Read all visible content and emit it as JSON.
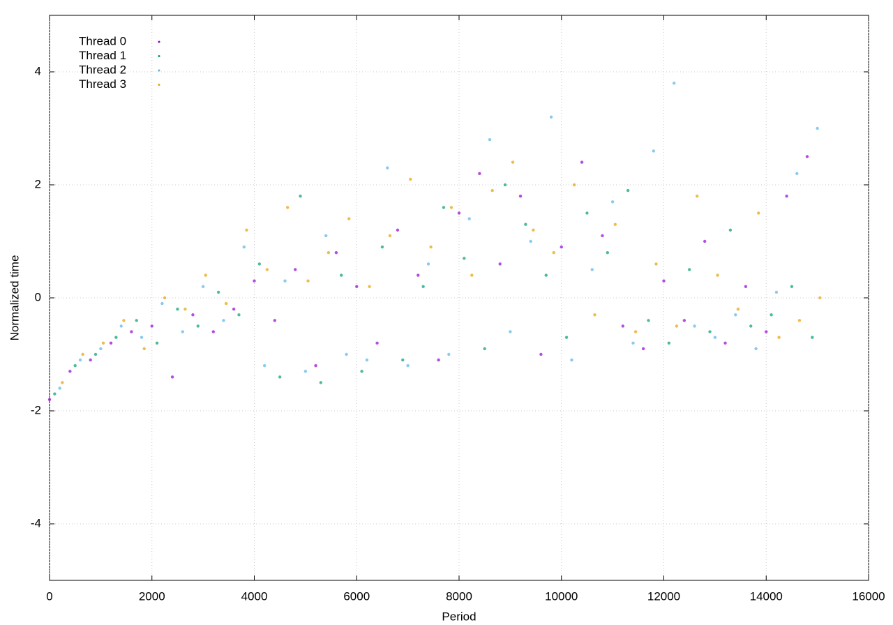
{
  "chart_data": {
    "type": "scatter",
    "xlabel": "Period",
    "ylabel": "Normalized time",
    "xlim": [
      0,
      16000
    ],
    "ylim": [
      -5,
      5
    ],
    "xticks": [
      0,
      2000,
      4000,
      6000,
      8000,
      10000,
      12000,
      14000,
      16000
    ],
    "yticks": [
      -4,
      -2,
      0,
      2,
      4
    ],
    "grid": true,
    "legend": "top-left",
    "series": [
      {
        "name": "Thread 0",
        "color": "#9400d3",
        "x": [
          0,
          400,
          800,
          1200,
          1600,
          2000,
          2400,
          2800,
          3200,
          3600,
          4000,
          4400,
          4800,
          5200,
          5600,
          6000,
          6400,
          6800,
          7200,
          7600,
          8000,
          8400,
          8800,
          9200,
          9600,
          10000,
          10400,
          10800,
          11200,
          11600,
          12000,
          12400,
          12800,
          13200,
          13600,
          14000,
          14400,
          14800
        ],
        "values": [
          -1.8,
          -1.3,
          -1.1,
          -0.8,
          -0.6,
          -0.5,
          -1.4,
          -0.3,
          -0.6,
          -0.2,
          0.3,
          -0.4,
          0.5,
          -1.2,
          0.8,
          0.2,
          -0.8,
          1.2,
          0.4,
          -1.1,
          1.5,
          2.2,
          0.6,
          1.8,
          -1.0,
          0.9,
          2.4,
          1.1,
          -0.5,
          -0.9,
          0.3,
          -0.4,
          1.0,
          -0.8,
          0.2,
          -0.6,
          1.8,
          2.5
        ]
      },
      {
        "name": "Thread 1",
        "color": "#009e73",
        "x": [
          100,
          500,
          900,
          1300,
          1700,
          2100,
          2500,
          2900,
          3300,
          3700,
          4100,
          4500,
          4900,
          5300,
          5700,
          6100,
          6500,
          6900,
          7300,
          7700,
          8100,
          8500,
          8900,
          9300,
          9700,
          10100,
          10500,
          10900,
          11300,
          11700,
          12100,
          12500,
          12900,
          13300,
          13700,
          14100,
          14500,
          14900
        ],
        "values": [
          -1.7,
          -1.2,
          -1.0,
          -0.7,
          -0.4,
          -0.8,
          -0.2,
          -0.5,
          0.1,
          -0.3,
          0.6,
          -1.4,
          1.8,
          -1.5,
          0.4,
          -1.3,
          0.9,
          -1.1,
          0.2,
          1.6,
          0.7,
          -0.9,
          2.0,
          1.3,
          0.4,
          -0.7,
          1.5,
          0.8,
          1.9,
          -0.4,
          -0.8,
          0.5,
          -0.6,
          1.2,
          -0.5,
          -0.3,
          0.2,
          -0.7
        ]
      },
      {
        "name": "Thread 2",
        "color": "#56b4e9",
        "x": [
          200,
          600,
          1000,
          1400,
          1800,
          2200,
          2600,
          3000,
          3400,
          3800,
          4200,
          4600,
          5000,
          5400,
          5800,
          6200,
          6600,
          7000,
          7400,
          7800,
          8200,
          8600,
          9000,
          9400,
          9800,
          10200,
          10600,
          11000,
          11400,
          11800,
          12200,
          12600,
          13000,
          13400,
          13800,
          14200,
          14600,
          15000
        ],
        "values": [
          -1.6,
          -1.1,
          -0.9,
          -0.5,
          -0.7,
          -0.1,
          -0.6,
          0.2,
          -0.4,
          0.9,
          -1.2,
          0.3,
          -1.3,
          1.1,
          -1.0,
          -1.1,
          2.3,
          -1.2,
          0.6,
          -1.0,
          1.4,
          2.8,
          -0.6,
          1.0,
          3.2,
          -1.1,
          0.5,
          1.7,
          -0.8,
          2.6,
          3.8,
          -0.5,
          -0.7,
          -0.3,
          -0.9,
          0.1,
          2.2,
          3.0
        ]
      },
      {
        "name": "Thread 3",
        "color": "#e69f00",
        "x": [
          250,
          650,
          1050,
          1450,
          1850,
          2250,
          2650,
          3050,
          3450,
          3850,
          4250,
          4650,
          5050,
          5450,
          5850,
          6250,
          6650,
          7050,
          7450,
          7850,
          8250,
          8650,
          9050,
          9450,
          9850,
          10250,
          10650,
          11050,
          11450,
          11850,
          12250,
          12650,
          13050,
          13450,
          13850,
          14250,
          14650,
          15050
        ],
        "values": [
          -1.5,
          -1.0,
          -0.8,
          -0.4,
          -0.9,
          0.0,
          -0.2,
          0.4,
          -0.1,
          1.2,
          0.5,
          1.6,
          0.3,
          0.8,
          1.4,
          0.2,
          1.1,
          2.1,
          0.9,
          1.6,
          0.4,
          1.9,
          2.4,
          1.2,
          0.8,
          2.0,
          -0.3,
          1.3,
          -0.6,
          0.6,
          -0.5,
          1.8,
          0.4,
          -0.2,
          1.5,
          -0.7,
          -0.4,
          0.0
        ]
      }
    ]
  }
}
